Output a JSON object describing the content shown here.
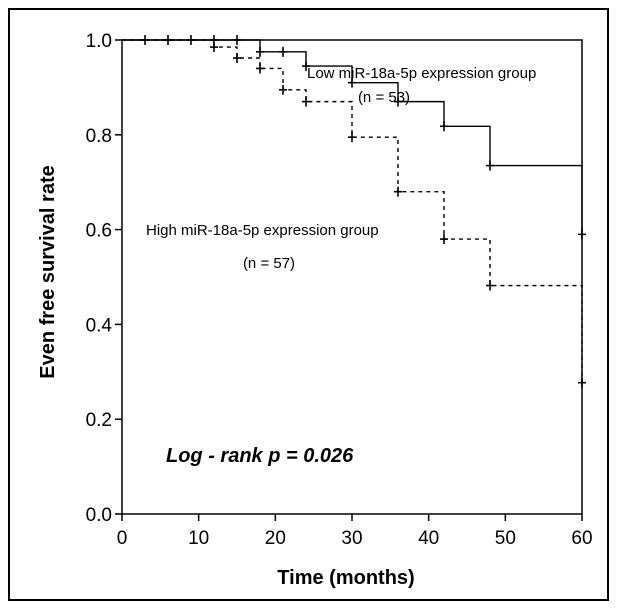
{
  "chart_data": {
    "type": "line",
    "title": "",
    "xlabel": "Time (months)",
    "ylabel": "Even free survival rate",
    "xlim": [
      0,
      60
    ],
    "ylim": [
      0,
      1.0
    ],
    "x_ticks": [
      "0",
      "10",
      "20",
      "30",
      "40",
      "50",
      "60"
    ],
    "y_ticks": [
      "0.0",
      "0.2",
      "0.4",
      "0.6",
      "0.8",
      "1.0"
    ],
    "grid": false,
    "series": [
      {
        "name": "Low miR-18a-5p expression group",
        "style": "solid",
        "steps": [
          [
            0,
            1.0
          ],
          [
            18,
            0.975
          ],
          [
            24,
            0.945
          ],
          [
            30,
            0.91
          ],
          [
            36,
            0.87
          ],
          [
            42,
            0.818
          ],
          [
            48,
            0.735
          ],
          [
            60,
            0.59
          ]
        ],
        "censor_marks": [
          [
            3,
            1.0
          ],
          [
            6,
            1.0
          ],
          [
            9,
            1.0
          ],
          [
            12,
            1.0
          ],
          [
            15,
            1.0
          ],
          [
            18,
            0.975
          ],
          [
            21,
            0.975
          ],
          [
            24,
            0.945
          ],
          [
            30,
            0.91
          ],
          [
            36,
            0.87
          ],
          [
            42,
            0.818
          ],
          [
            48,
            0.735
          ],
          [
            60,
            0.59
          ]
        ]
      },
      {
        "name": "High miR-18a-5p expression group",
        "style": "dashed",
        "steps": [
          [
            0,
            1.0
          ],
          [
            12,
            0.985
          ],
          [
            15,
            0.962
          ],
          [
            18,
            0.94
          ],
          [
            21,
            0.895
          ],
          [
            24,
            0.87
          ],
          [
            30,
            0.795
          ],
          [
            36,
            0.68
          ],
          [
            42,
            0.58
          ],
          [
            48,
            0.482
          ],
          [
            60,
            0.277
          ]
        ],
        "censor_marks": [
          [
            12,
            0.985
          ],
          [
            15,
            0.962
          ],
          [
            18,
            0.94
          ],
          [
            21,
            0.895
          ],
          [
            24,
            0.87
          ],
          [
            30,
            0.795
          ],
          [
            36,
            0.68
          ],
          [
            42,
            0.58
          ],
          [
            48,
            0.482
          ],
          [
            60,
            0.277
          ]
        ]
      }
    ],
    "annotations": {
      "low_label": "Low miR-18a-5p expression group",
      "low_n": "(n = 53)",
      "high_label": "High miR-18a-5p expression group",
      "high_n": "(n = 57)",
      "pvalue": "Log - rank p = 0.026"
    }
  }
}
